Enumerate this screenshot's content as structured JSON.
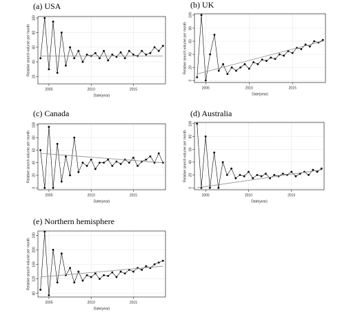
{
  "chart_data": [
    {
      "type": "line",
      "title": "(a)  USA",
      "xlabel": "Date(year)",
      "ylabel": "Relative search volume per month",
      "x": [
        2004,
        2004.5,
        2005,
        2005.5,
        2006,
        2006.5,
        2007,
        2007.5,
        2008,
        2008.5,
        2009,
        2009.5,
        2010,
        2010.5,
        2011,
        2011.5,
        2012,
        2012.5,
        2013,
        2013.5,
        2014,
        2014.5,
        2015,
        2015.5,
        2016,
        2016.5,
        2017,
        2017.5,
        2018,
        2018.5
      ],
      "values": [
        45,
        100,
        30,
        95,
        25,
        80,
        35,
        60,
        45,
        55,
        40,
        50,
        48,
        52,
        45,
        55,
        42,
        50,
        47,
        53,
        45,
        55,
        50,
        48,
        55,
        50,
        52,
        60,
        55,
        62
      ],
      "trend": {
        "x": [
          2004,
          2018.5
        ],
        "values": [
          48,
          48
        ]
      },
      "color": "#000000",
      "trend_color": "#888888",
      "xlim": [
        2003.7,
        2018.8
      ],
      "ylim": [
        10,
        102
      ],
      "xticks": [
        2005,
        2010,
        2015
      ],
      "yticks": [
        20,
        40,
        60,
        80,
        100
      ],
      "grid": true
    },
    {
      "type": "line",
      "title": "(b) UK",
      "xlabel": "Date(year)",
      "ylabel": "Relative search volume per month",
      "x": [
        2004,
        2004.5,
        2005,
        2005.5,
        2006,
        2006.5,
        2007,
        2007.5,
        2008,
        2008.5,
        2009,
        2009.5,
        2010,
        2010.5,
        2011,
        2011.5,
        2012,
        2012.5,
        2013,
        2013.5,
        2014,
        2014.5,
        2015,
        2015.5,
        2016,
        2016.5,
        2017,
        2017.5,
        2018,
        2018.5
      ],
      "values": [
        5,
        100,
        0,
        40,
        70,
        15,
        25,
        10,
        20,
        15,
        20,
        25,
        18,
        28,
        25,
        32,
        30,
        35,
        33,
        40,
        38,
        45,
        42,
        50,
        48,
        55,
        52,
        60,
        58,
        62
      ],
      "trend": {
        "x": [
          2004,
          2018.5
        ],
        "values": [
          10,
          60
        ]
      },
      "color": "#000000",
      "trend_color": "#888888",
      "xlim": [
        2003.7,
        2018.8
      ],
      "ylim": [
        -3,
        102
      ],
      "xticks": [
        2005,
        2010,
        2015
      ],
      "yticks": [
        0,
        20,
        40,
        60,
        80,
        100
      ],
      "grid": true
    },
    {
      "type": "line",
      "title": "(c) Canada",
      "xlabel": "Date(year)",
      "ylabel": "Relative search volume per month",
      "x": [
        2004,
        2004.5,
        2005,
        2005.5,
        2006,
        2006.5,
        2007,
        2007.5,
        2008,
        2008.5,
        2009,
        2009.5,
        2010,
        2010.5,
        2011,
        2011.5,
        2012,
        2012.5,
        2013,
        2013.5,
        2014,
        2014.5,
        2015,
        2015.5,
        2016,
        2016.5,
        2017,
        2017.5,
        2018,
        2018.5
      ],
      "values": [
        60,
        0,
        97,
        0,
        70,
        10,
        50,
        20,
        80,
        25,
        40,
        35,
        45,
        30,
        40,
        40,
        45,
        35,
        42,
        38,
        45,
        40,
        48,
        35,
        42,
        45,
        50,
        40,
        55,
        40
      ],
      "trend": {
        "x": [
          2004,
          2018.5
        ],
        "values": [
          55,
          40
        ]
      },
      "color": "#000000",
      "trend_color": "#888888",
      "xlim": [
        2003.7,
        2018.8
      ],
      "ylim": [
        -3,
        102
      ],
      "xticks": [
        2005,
        2010,
        2015
      ],
      "yticks": [
        0,
        20,
        40,
        60,
        80,
        100
      ],
      "grid": true
    },
    {
      "type": "line",
      "title": "(d) Australia",
      "xlabel": "Date(year)",
      "ylabel": "Relative search volume per month",
      "x": [
        2004,
        2004.5,
        2005,
        2005.5,
        2006,
        2006.5,
        2007,
        2007.5,
        2008,
        2008.5,
        2009,
        2009.5,
        2010,
        2010.5,
        2011,
        2011.5,
        2012,
        2012.5,
        2013,
        2013.5,
        2014,
        2014.5,
        2015,
        2015.5,
        2016,
        2016.5,
        2017,
        2017.5,
        2018,
        2018.5
      ],
      "values": [
        100,
        0,
        80,
        0,
        55,
        0,
        40,
        20,
        30,
        15,
        20,
        18,
        25,
        15,
        20,
        18,
        22,
        15,
        20,
        18,
        22,
        20,
        25,
        18,
        22,
        25,
        20,
        28,
        25,
        30
      ],
      "trend": {
        "x": [
          2004,
          2018.5
        ],
        "values": [
          0,
          28
        ]
      },
      "color": "#000000",
      "trend_color": "#888888",
      "xlim": [
        2003.7,
        2018.8
      ],
      "ylim": [
        -3,
        102
      ],
      "xticks": [
        2005,
        2010,
        2015
      ],
      "yticks": [
        0,
        20,
        40,
        60,
        80,
        100
      ],
      "grid": true
    },
    {
      "type": "line",
      "title": "(e) Northern hemisphere",
      "xlabel": "Date(year)",
      "ylabel": "Relative search volume per month",
      "x": [
        2004,
        2004.5,
        2005,
        2005.5,
        2006,
        2006.5,
        2007,
        2007.5,
        2008,
        2008.5,
        2009,
        2009.5,
        2010,
        2010.5,
        2011,
        2011.5,
        2012,
        2012.5,
        2013,
        2013.5,
        2014,
        2014.5,
        2015,
        2015.5,
        2016,
        2016.5,
        2017,
        2017.5,
        2018,
        2018.5
      ],
      "values": [
        90,
        250,
        75,
        200,
        110,
        190,
        130,
        150,
        110,
        140,
        115,
        130,
        125,
        135,
        120,
        130,
        128,
        138,
        125,
        140,
        135,
        145,
        140,
        150,
        145,
        155,
        150,
        160,
        165,
        170
      ],
      "trend": {
        "x": [
          2004,
          2018.5
        ],
        "values": [
          125,
          155
        ]
      },
      "color": "#000000",
      "trend_color": "#888888",
      "xlim": [
        2003.7,
        2018.8
      ],
      "ylim": [
        70,
        252
      ],
      "xticks": [
        2005,
        2010,
        2015
      ],
      "yticks": [
        80,
        120,
        160,
        200,
        240
      ],
      "grid": true
    }
  ]
}
